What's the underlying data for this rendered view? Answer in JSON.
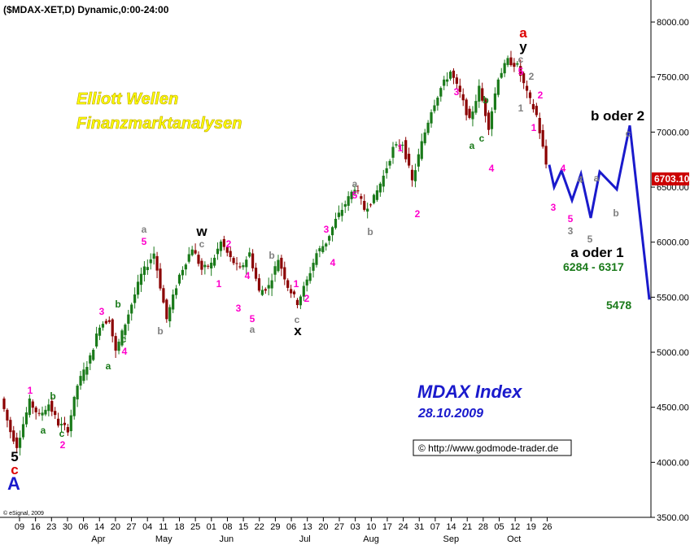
{
  "header": {
    "symbol_line": "($MDAX-XET,D) Dynamic,0:00-24:00",
    "branding_line1": "Elliott Wellen",
    "branding_line2": "Finanzmarktanalysen",
    "index_title": "MDAX Index",
    "index_date": "28.10.2009",
    "url_box": "© http://www.godmode-trader.de",
    "footer_copyright": "© eSignal, 2009"
  },
  "colors": {
    "up_candle": "#1a7a1a",
    "down_candle": "#8b0000",
    "projection": "#1a1acc",
    "wave_magenta": "#ff00cc",
    "wave_gray": "#808080",
    "wave_green": "#1a7a1a",
    "wave_black": "#000000",
    "wave_red": "#dd0000",
    "wave_blue": "#1a1acc",
    "branding_yellow": "#ffff00",
    "last_price_bg": "#cc0000"
  },
  "chart_data": {
    "type": "candlestick",
    "title": "",
    "ylim": [
      3500,
      8200
    ],
    "y_ticks": [
      3500,
      4000,
      4500,
      5000,
      5500,
      6000,
      6500,
      7000,
      7500,
      8000
    ],
    "y_tick_labels": [
      "3500.00",
      "4000.00",
      "4500.00",
      "5000.00",
      "5500.00",
      "6000.00",
      "6500.00",
      "7000.00",
      "7500.00",
      "8000.00"
    ],
    "x_tick_labels": [
      "09",
      "16",
      "23",
      "30",
      "06",
      "14",
      "20",
      "27",
      "04",
      "11",
      "18",
      "25",
      "01",
      "08",
      "15",
      "22",
      "29",
      "06",
      "13",
      "20",
      "27",
      "03",
      "10",
      "17",
      "24",
      "31",
      "07",
      "14",
      "21",
      "28",
      "05",
      "12",
      "19",
      "26"
    ],
    "month_labels": [
      "Apr",
      "May",
      "Jun",
      "Jul",
      "Aug",
      "Sep",
      "Oct"
    ],
    "last_price": "6703.10",
    "price_path": [
      [
        0,
        4580
      ],
      [
        3,
        4280
      ],
      [
        5,
        4150
      ],
      [
        9,
        4550
      ],
      [
        12,
        4420
      ],
      [
        15,
        4530
      ],
      [
        18,
        4350
      ],
      [
        21,
        4300
      ],
      [
        24,
        4700
      ],
      [
        28,
        4950
      ],
      [
        31,
        5250
      ],
      [
        34,
        5300
      ],
      [
        36,
        5000
      ],
      [
        40,
        5350
      ],
      [
        44,
        5700
      ],
      [
        48,
        5900
      ],
      [
        52,
        5300
      ],
      [
        56,
        5700
      ],
      [
        60,
        5950
      ],
      [
        63,
        5750
      ],
      [
        66,
        5800
      ],
      [
        69,
        6000
      ],
      [
        72,
        5850
      ],
      [
        75,
        5750
      ],
      [
        78,
        5900
      ],
      [
        81,
        5550
      ],
      [
        84,
        5600
      ],
      [
        87,
        5850
      ],
      [
        90,
        5600
      ],
      [
        93,
        5450
      ],
      [
        96,
        5650
      ],
      [
        99,
        5900
      ],
      [
        102,
        6000
      ],
      [
        105,
        6200
      ],
      [
        108,
        6350
      ],
      [
        111,
        6500
      ],
      [
        114,
        6300
      ],
      [
        117,
        6400
      ],
      [
        120,
        6600
      ],
      [
        123,
        6850
      ],
      [
        126,
        6900
      ],
      [
        129,
        6550
      ],
      [
        132,
        6900
      ],
      [
        135,
        7200
      ],
      [
        138,
        7400
      ],
      [
        141,
        7550
      ],
      [
        144,
        7350
      ],
      [
        147,
        7100
      ],
      [
        150,
        7400
      ],
      [
        153,
        7050
      ],
      [
        156,
        7500
      ],
      [
        159,
        7650
      ],
      [
        162,
        7600
      ],
      [
        165,
        7350
      ],
      [
        168,
        7150
      ],
      [
        171,
        6705
      ]
    ],
    "projection_path": [
      [
        6700,
        6703
      ],
      [
        6500,
        6500
      ],
      [
        6650,
        6650
      ],
      [
        6380,
        6380
      ],
      [
        6620,
        6620
      ],
      [
        6220,
        6220
      ],
      [
        6640,
        6640
      ],
      [
        6480,
        6480
      ],
      [
        7060,
        7060
      ],
      [
        5478,
        5478
      ]
    ],
    "levels": [
      "6284 - 6317",
      "5478"
    ],
    "annotations": [
      {
        "text": "5",
        "color": "black",
        "size": "large"
      },
      {
        "text": "c",
        "color": "red",
        "size": "large"
      },
      {
        "text": "A",
        "color": "blue",
        "size": "xl"
      },
      {
        "text": "1",
        "color": "magenta"
      },
      {
        "text": "a",
        "color": "green"
      },
      {
        "text": "b",
        "color": "green"
      },
      {
        "text": "c",
        "color": "green"
      },
      {
        "text": "2",
        "color": "magenta"
      },
      {
        "text": "3",
        "color": "magenta"
      },
      {
        "text": "b",
        "color": "green"
      },
      {
        "text": "c",
        "color": "green"
      },
      {
        "text": "4",
        "color": "magenta"
      },
      {
        "text": "a",
        "color": "green"
      },
      {
        "text": "a",
        "color": "gray"
      },
      {
        "text": "5",
        "color": "magenta"
      },
      {
        "text": "b",
        "color": "gray"
      },
      {
        "text": "w",
        "color": "black",
        "size": "large"
      },
      {
        "text": "c",
        "color": "gray"
      },
      {
        "text": "2",
        "color": "magenta"
      },
      {
        "text": "1",
        "color": "magenta"
      },
      {
        "text": "4",
        "color": "magenta"
      },
      {
        "text": "3",
        "color": "magenta"
      },
      {
        "text": "5",
        "color": "magenta"
      },
      {
        "text": "a",
        "color": "gray"
      },
      {
        "text": "b",
        "color": "gray"
      },
      {
        "text": "1",
        "color": "magenta"
      },
      {
        "text": "2",
        "color": "magenta"
      },
      {
        "text": "c",
        "color": "gray"
      },
      {
        "text": "x",
        "color": "black",
        "size": "large"
      },
      {
        "text": "3",
        "color": "magenta"
      },
      {
        "text": "4",
        "color": "magenta"
      },
      {
        "text": "a",
        "color": "gray"
      },
      {
        "text": "5",
        "color": "magenta"
      },
      {
        "text": "b",
        "color": "gray"
      },
      {
        "text": "1",
        "color": "magenta"
      },
      {
        "text": "2",
        "color": "magenta"
      },
      {
        "text": "3",
        "color": "magenta"
      },
      {
        "text": "b",
        "color": "green"
      },
      {
        "text": "a",
        "color": "green"
      },
      {
        "text": "c",
        "color": "green"
      },
      {
        "text": "4",
        "color": "magenta"
      },
      {
        "text": "a",
        "color": "red",
        "size": "large"
      },
      {
        "text": "y",
        "color": "black",
        "size": "large"
      },
      {
        "text": "c",
        "color": "gray"
      },
      {
        "text": "5",
        "color": "magenta"
      },
      {
        "text": "2",
        "color": "gray"
      },
      {
        "text": "1",
        "color": "gray"
      },
      {
        "text": "2",
        "color": "magenta"
      },
      {
        "text": "1",
        "color": "magenta"
      },
      {
        "text": "3",
        "color": "magenta"
      },
      {
        "text": "4",
        "color": "magenta"
      },
      {
        "text": "4",
        "color": "gray"
      },
      {
        "text": "5",
        "color": "magenta"
      },
      {
        "text": "3",
        "color": "gray"
      },
      {
        "text": "a",
        "color": "gray"
      },
      {
        "text": "5",
        "color": "gray"
      },
      {
        "text": "b",
        "color": "gray"
      },
      {
        "text": "c",
        "color": "gray"
      },
      {
        "text": "b oder 2",
        "color": "black",
        "size": "large"
      },
      {
        "text": "a oder 1",
        "color": "black",
        "size": "large"
      }
    ]
  }
}
